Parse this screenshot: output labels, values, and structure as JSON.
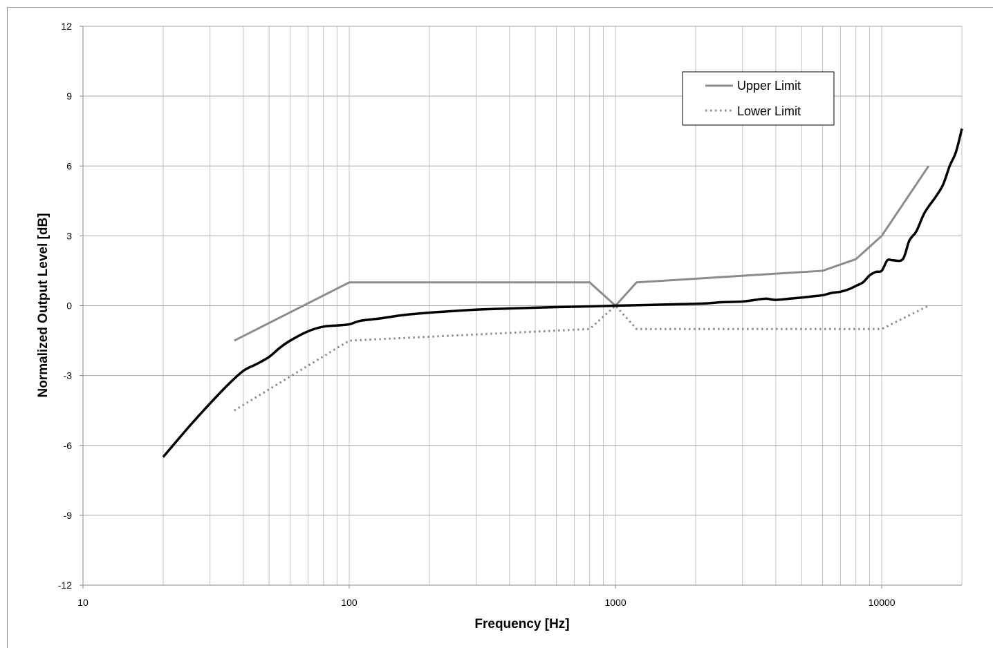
{
  "chart_data": {
    "type": "line",
    "xlabel": "Frequency [Hz]",
    "ylabel": "Normalized Output Level [dB]",
    "x_scale": "log",
    "xlim": [
      10,
      20000
    ],
    "ylim": [
      -12,
      12
    ],
    "x_ticks": [
      "10",
      "100",
      "1000",
      "10000"
    ],
    "x_tick_values": [
      10,
      100,
      1000,
      10000
    ],
    "y_ticks": [
      "12",
      "9",
      "6",
      "3",
      "0",
      "-3",
      "-6",
      "-9",
      "-12"
    ],
    "y_tick_values": [
      12,
      9,
      6,
      3,
      0,
      -3,
      -6,
      -9,
      -12
    ],
    "grid": true,
    "legend_position": "top-right",
    "series": [
      {
        "name": "Upper Limit",
        "color": "#8c8c8c",
        "style": "solid",
        "x": [
          37,
          100,
          800,
          1000,
          1200,
          6000,
          8000,
          10000,
          15000
        ],
        "y": [
          -1.5,
          1,
          1,
          0,
          1,
          1.5,
          2,
          3,
          6
        ]
      },
      {
        "name": "Lower Limit",
        "color": "#8c8c8c",
        "style": "dotted",
        "x": [
          37,
          100,
          800,
          1000,
          1200,
          10000,
          15000
        ],
        "y": [
          -4.5,
          -1.5,
          -1,
          0,
          -1,
          -1,
          0
        ]
      },
      {
        "color": "#000000",
        "style": "solid",
        "x": [
          20,
          25,
          30,
          35,
          40,
          45,
          50,
          55,
          60,
          70,
          80,
          90,
          100,
          110,
          130,
          160,
          200,
          300,
          400,
          600,
          800,
          1000,
          1300,
          1800,
          2200,
          2500,
          3000,
          3500,
          3700,
          4000,
          4500,
          5000,
          5500,
          6000,
          6500,
          7000,
          7500,
          8000,
          8500,
          9000,
          9500,
          10000,
          10500,
          11000,
          12000,
          12700,
          13500,
          14500,
          16000,
          17000,
          18000,
          19000,
          20000
        ],
        "y": [
          -6.5,
          -5.2,
          -4.2,
          -3.4,
          -2.8,
          -2.5,
          -2.2,
          -1.8,
          -1.5,
          -1.1,
          -0.9,
          -0.85,
          -0.8,
          -0.65,
          -0.55,
          -0.4,
          -0.3,
          -0.17,
          -0.12,
          -0.06,
          -0.03,
          0,
          0.03,
          0.07,
          0.1,
          0.15,
          0.18,
          0.28,
          0.3,
          0.25,
          0.3,
          0.35,
          0.4,
          0.45,
          0.55,
          0.6,
          0.7,
          0.85,
          1.0,
          1.3,
          1.45,
          1.5,
          1.95,
          1.95,
          2.0,
          2.8,
          3.2,
          4.0,
          4.7,
          5.2,
          6.0,
          6.6,
          7.6
        ]
      }
    ]
  }
}
